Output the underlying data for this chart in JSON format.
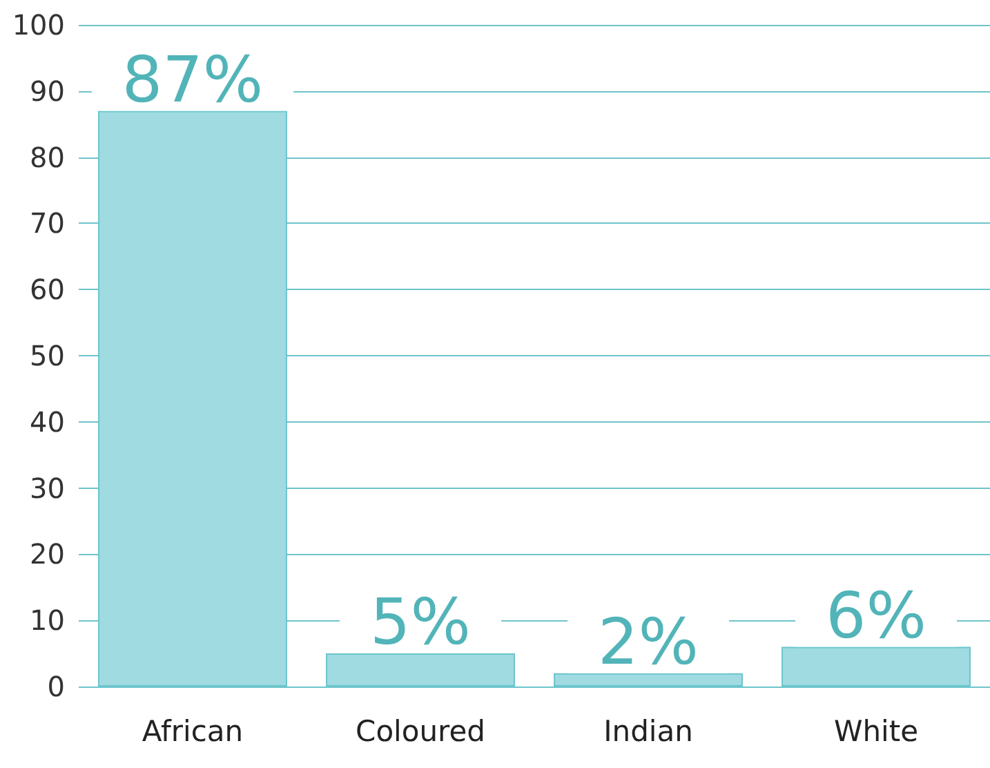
{
  "chart_data": {
    "type": "bar",
    "categories": [
      "African",
      "Coloured",
      "Indian",
      "White"
    ],
    "values": [
      87,
      5,
      2,
      6
    ],
    "value_labels": [
      "87%",
      "5%",
      "2%",
      "6%"
    ],
    "color": "#a0dbe2",
    "ylim": [
      0,
      100
    ],
    "yticks": [
      0,
      10,
      20,
      30,
      40,
      50,
      60,
      70,
      80,
      90,
      100
    ],
    "grid": "y"
  }
}
